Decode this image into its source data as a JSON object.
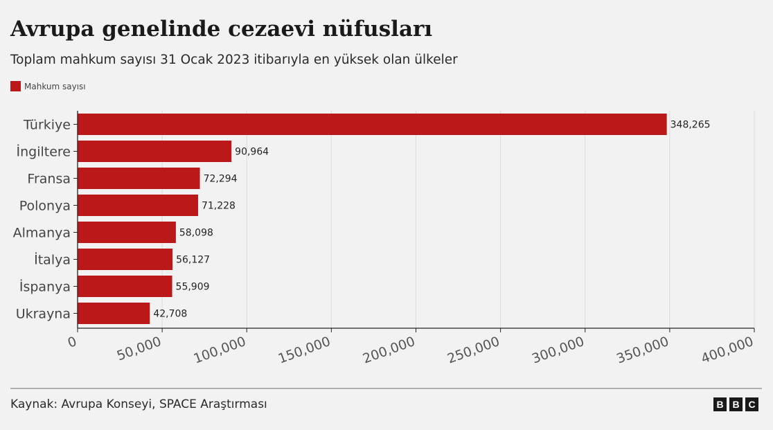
{
  "title": "Avrupa genelinde cezaevi nüfusları",
  "subtitle": "Toplam mahkum sayısı 31 Ocak 2023 itibarıyla en yüksek olan ülkeler",
  "source": "Kaynak: Avrupa Konseyi, SPACE Araştırması",
  "logo": [
    "B",
    "B",
    "C"
  ],
  "colors": {
    "bar": "#bb1919",
    "background": "#f2f2f2",
    "axis": "#222222",
    "grid": "#dcdcdc"
  },
  "chart_data": {
    "type": "bar",
    "orientation": "horizontal",
    "categories": [
      "Türkiye",
      "İngiltere",
      "Fransa",
      "Polonya",
      "Almanya",
      "İtalya",
      "İspanya",
      "Ukrayna"
    ],
    "series": [
      {
        "name": "Mahkum sayısı",
        "values": [
          348265,
          90964,
          72294,
          71228,
          58098,
          56127,
          55909,
          42708
        ],
        "value_labels": [
          "348,265",
          "90,964",
          "72,294",
          "71,228",
          "58,098",
          "56,127",
          "55,909",
          "42,708"
        ]
      }
    ],
    "xlim": [
      0,
      400000
    ],
    "x_ticks": [
      0,
      50000,
      100000,
      150000,
      200000,
      250000,
      300000,
      350000,
      400000
    ],
    "x_tick_labels": [
      "0",
      "50,000",
      "100,000",
      "150,000",
      "200,000",
      "250,000",
      "300,000",
      "350,000",
      "400,000"
    ],
    "grid": true,
    "legend_position": "top-left"
  }
}
